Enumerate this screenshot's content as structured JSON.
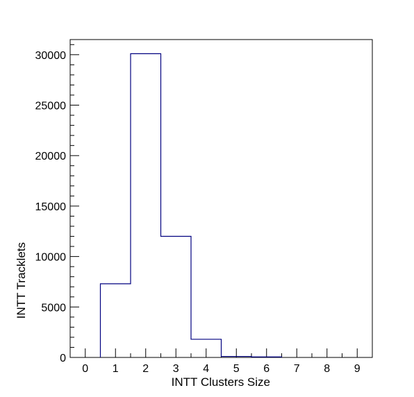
{
  "chart_data": {
    "type": "bar",
    "title": "",
    "xlabel": "INTT Clusters Size",
    "ylabel": "INTT Tracklets",
    "xlim": [
      -0.5,
      9.5
    ],
    "ylim": [
      0,
      31500
    ],
    "x_ticks": [
      0,
      1,
      2,
      3,
      4,
      5,
      6,
      7,
      8,
      9
    ],
    "y_ticks": [
      0,
      5000,
      10000,
      15000,
      20000,
      25000,
      30000
    ],
    "categories": [
      1,
      2,
      3,
      4,
      5,
      6
    ],
    "values": [
      7300,
      30100,
      12000,
      1800,
      100,
      50
    ],
    "line_color": "#000080",
    "grid": false,
    "legend": "none"
  }
}
